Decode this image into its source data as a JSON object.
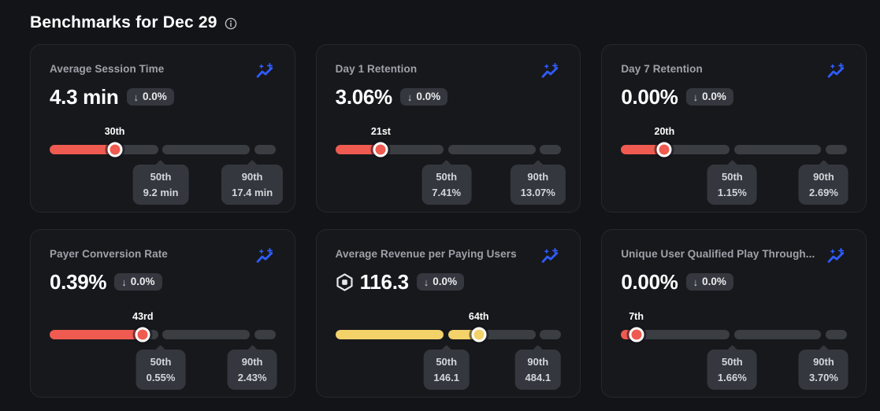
{
  "header": {
    "title": "Benchmarks for Dec 29"
  },
  "colors": {
    "page_bg": "#131418",
    "card_bg": "#17181c",
    "card_border": "#26282d",
    "accent_blue": "#2f5cff",
    "bar_red": "#ef5b50",
    "bar_yellow": "#f4d26a",
    "track": "#3a3d42",
    "chip_bg": "#34373d"
  },
  "cards": [
    {
      "title": "Average Session Time",
      "currency_icon": false,
      "value": "4.3 min",
      "change_arrow": "↓",
      "change": "0.0%",
      "percentile": 30,
      "percentile_label": "30th",
      "bar_color": "red",
      "p50_title": "50th",
      "p50_value": "9.2 min",
      "p90_title": "90th",
      "p90_value": "17.4 min"
    },
    {
      "title": "Day 1 Retention",
      "currency_icon": false,
      "value": "3.06%",
      "change_arrow": "↓",
      "change": "0.0%",
      "percentile": 21,
      "percentile_label": "21st",
      "bar_color": "red",
      "p50_title": "50th",
      "p50_value": "7.41%",
      "p90_title": "90th",
      "p90_value": "13.07%"
    },
    {
      "title": "Day 7 Retention",
      "currency_icon": false,
      "value": "0.00%",
      "change_arrow": "↓",
      "change": "0.0%",
      "percentile": 20,
      "percentile_label": "20th",
      "bar_color": "red",
      "p50_title": "50th",
      "p50_value": "1.15%",
      "p90_title": "90th",
      "p90_value": "2.69%"
    },
    {
      "title": "Payer Conversion Rate",
      "currency_icon": false,
      "value": "0.39%",
      "change_arrow": "↓",
      "change": "0.0%",
      "percentile": 43,
      "percentile_label": "43rd",
      "bar_color": "red",
      "p50_title": "50th",
      "p50_value": "0.55%",
      "p90_title": "90th",
      "p90_value": "2.43%"
    },
    {
      "title": "Average Revenue per Paying Users",
      "currency_icon": true,
      "value": "116.3",
      "change_arrow": "↓",
      "change": "0.0%",
      "percentile": 64,
      "percentile_label": "64th",
      "bar_color": "yellow",
      "p50_title": "50th",
      "p50_value": "146.1",
      "p90_title": "90th",
      "p90_value": "484.1"
    },
    {
      "title": "Unique User Qualified Play Through...",
      "currency_icon": false,
      "value": "0.00%",
      "change_arrow": "↓",
      "change": "0.0%",
      "percentile": 7,
      "percentile_label": "7th",
      "bar_color": "red",
      "p50_title": "50th",
      "p50_value": "1.66%",
      "p90_title": "90th",
      "p90_value": "3.70%"
    }
  ]
}
